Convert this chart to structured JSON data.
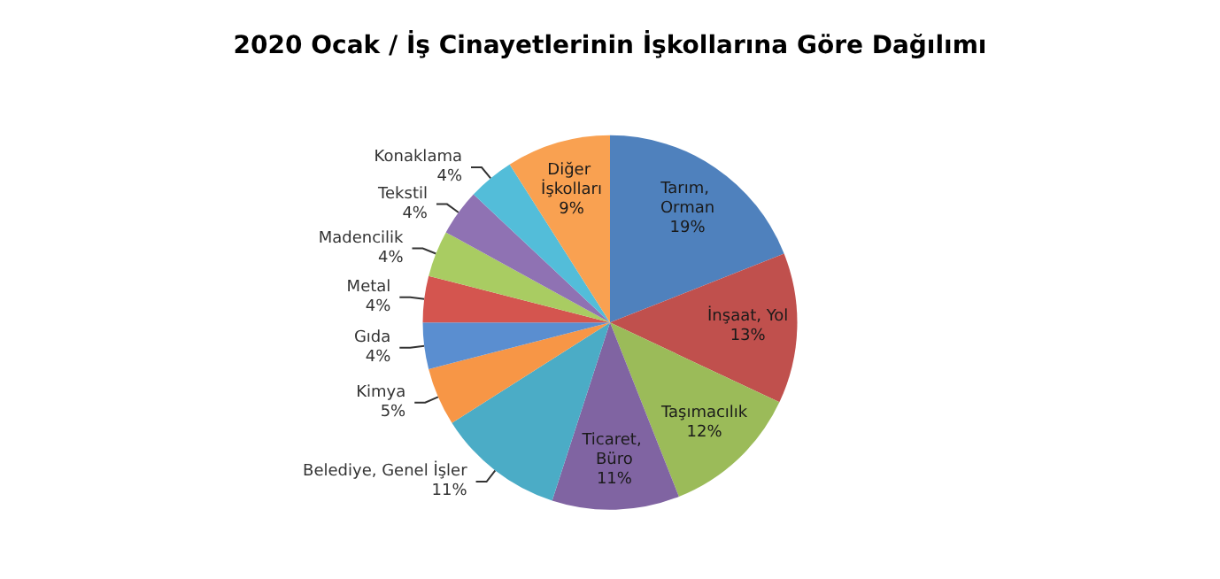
{
  "chart_data": {
    "type": "pie",
    "title": "2020 Ocak / İş Cinayetlerinin İşkollarına Göre Dağılımı",
    "categories": [
      "Tarım, Orman",
      "İnşaat, Yol",
      "Taşımacılık",
      "Ticaret, Büro",
      "Belediye, Genel İşler",
      "Kimya",
      "Gıda",
      "Metal",
      "Madencilik",
      "Tekstil",
      "Konaklama",
      "Diğer İşkolları"
    ],
    "values": [
      19,
      13,
      12,
      11,
      11,
      5,
      4,
      4,
      4,
      4,
      4,
      9
    ],
    "colors": [
      "#4f81bd",
      "#c0504d",
      "#9bbb59",
      "#8064a2",
      "#4bacc6",
      "#f79646",
      "#5a8ed0",
      "#d4554f",
      "#a9cc62",
      "#8f72b3",
      "#53bdd9",
      "#f9a151"
    ],
    "value_labels": [
      "19%",
      "13%",
      "12%",
      "11%",
      "11%",
      "5%",
      "4%",
      "4%",
      "4%",
      "4%",
      "4%",
      "9%"
    ]
  }
}
